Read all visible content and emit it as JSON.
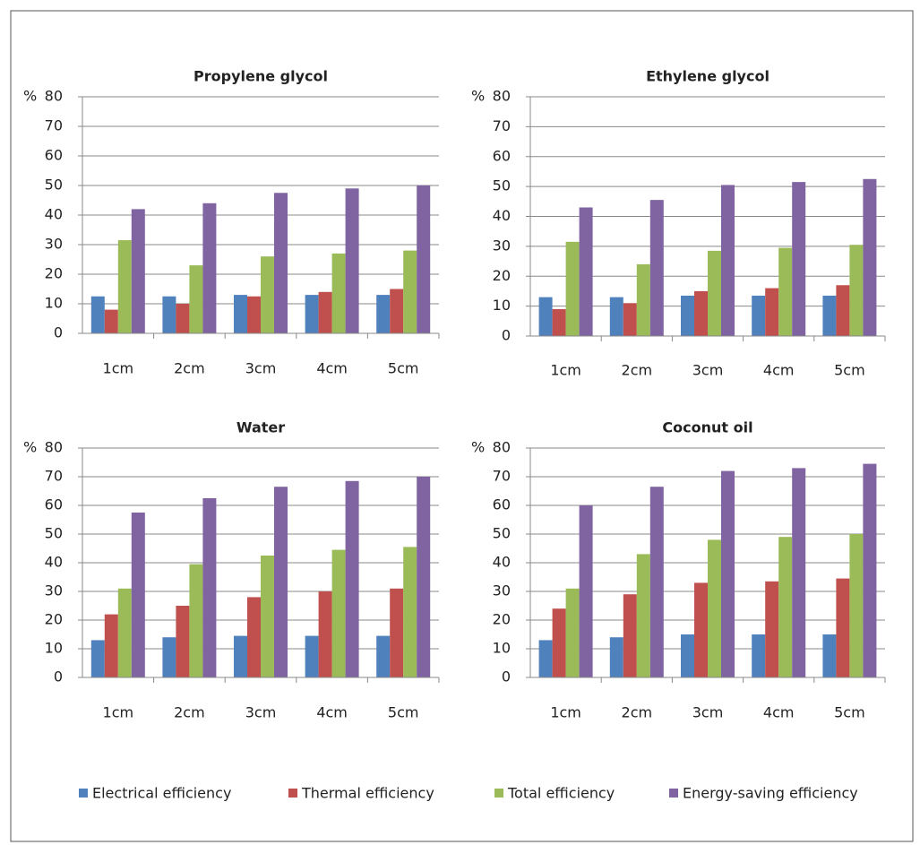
{
  "chart_data": [
    {
      "type": "bar",
      "title": "Propylene glycol",
      "y_label": "%",
      "categories": [
        "1cm",
        "2cm",
        "3cm",
        "4cm",
        "5cm"
      ],
      "ylim": [
        0,
        80
      ],
      "yticks": [
        0,
        10,
        20,
        30,
        40,
        50,
        60,
        70,
        80
      ],
      "grid": true,
      "series": [
        {
          "name": "Electrical efficiency",
          "color": "#4f81bd",
          "values": [
            12.5,
            12.5,
            13,
            13,
            13
          ]
        },
        {
          "name": "Thermal efficiency",
          "color": "#c0504d",
          "values": [
            8,
            10,
            12.5,
            14,
            15
          ]
        },
        {
          "name": "Total efficiency",
          "color": "#9bbb59",
          "values": [
            31.5,
            23,
            26,
            27,
            28
          ]
        },
        {
          "name": "Energy-saving efficiency",
          "color": "#8064a2",
          "values": [
            42,
            44,
            47.5,
            49,
            50
          ]
        }
      ]
    },
    {
      "type": "bar",
      "title": "Ethylene glycol",
      "y_label": "%",
      "categories": [
        "1cm",
        "2cm",
        "3cm",
        "4cm",
        "5cm"
      ],
      "ylim": [
        0,
        80
      ],
      "yticks": [
        0,
        10,
        20,
        30,
        40,
        50,
        60,
        70,
        80
      ],
      "grid": true,
      "series": [
        {
          "color": "#4f81bd",
          "values": [
            13,
            13,
            13.5,
            13.5,
            13.5
          ]
        },
        {
          "color": "#c0504d",
          "values": [
            9,
            11,
            15,
            16,
            17
          ]
        },
        {
          "color": "#9bbb59",
          "values": [
            31.5,
            24,
            28.5,
            29.5,
            30.5
          ]
        },
        {
          "color": "#8064a2",
          "values": [
            43,
            45.5,
            50.5,
            51.5,
            52.5
          ]
        }
      ]
    },
    {
      "type": "bar",
      "title": "Water",
      "y_label": "%",
      "categories": [
        "1cm",
        "2cm",
        "3cm",
        "4cm",
        "5cm"
      ],
      "ylim": [
        0,
        80
      ],
      "yticks": [
        0,
        10,
        20,
        30,
        40,
        50,
        60,
        70,
        80
      ],
      "grid": true,
      "series": [
        {
          "color": "#4f81bd",
          "values": [
            13,
            14,
            14.5,
            14.5,
            14.5
          ]
        },
        {
          "color": "#c0504d",
          "values": [
            22,
            25,
            28,
            30,
            31
          ]
        },
        {
          "color": "#9bbb59",
          "values": [
            31,
            39.5,
            42.5,
            44.5,
            45.5
          ]
        },
        {
          "color": "#8064a2",
          "values": [
            57.5,
            62.5,
            66.5,
            68.5,
            70
          ]
        }
      ]
    },
    {
      "type": "bar",
      "title": "Coconut oil",
      "y_label": "%",
      "categories": [
        "1cm",
        "2cm",
        "3cm",
        "4cm",
        "5cm"
      ],
      "ylim": [
        0,
        80
      ],
      "yticks": [
        0,
        10,
        20,
        30,
        40,
        50,
        60,
        70,
        80
      ],
      "grid": true,
      "series": [
        {
          "color": "#4f81bd",
          "values": [
            13,
            14,
            15,
            15,
            15
          ]
        },
        {
          "color": "#c0504d",
          "values": [
            24,
            29,
            33,
            33.5,
            34.5
          ]
        },
        {
          "color": "#9bbb59",
          "values": [
            31,
            43,
            48,
            49,
            50
          ]
        },
        {
          "color": "#8064a2",
          "values": [
            60,
            66.5,
            72,
            73,
            74.5
          ]
        }
      ]
    }
  ]
}
